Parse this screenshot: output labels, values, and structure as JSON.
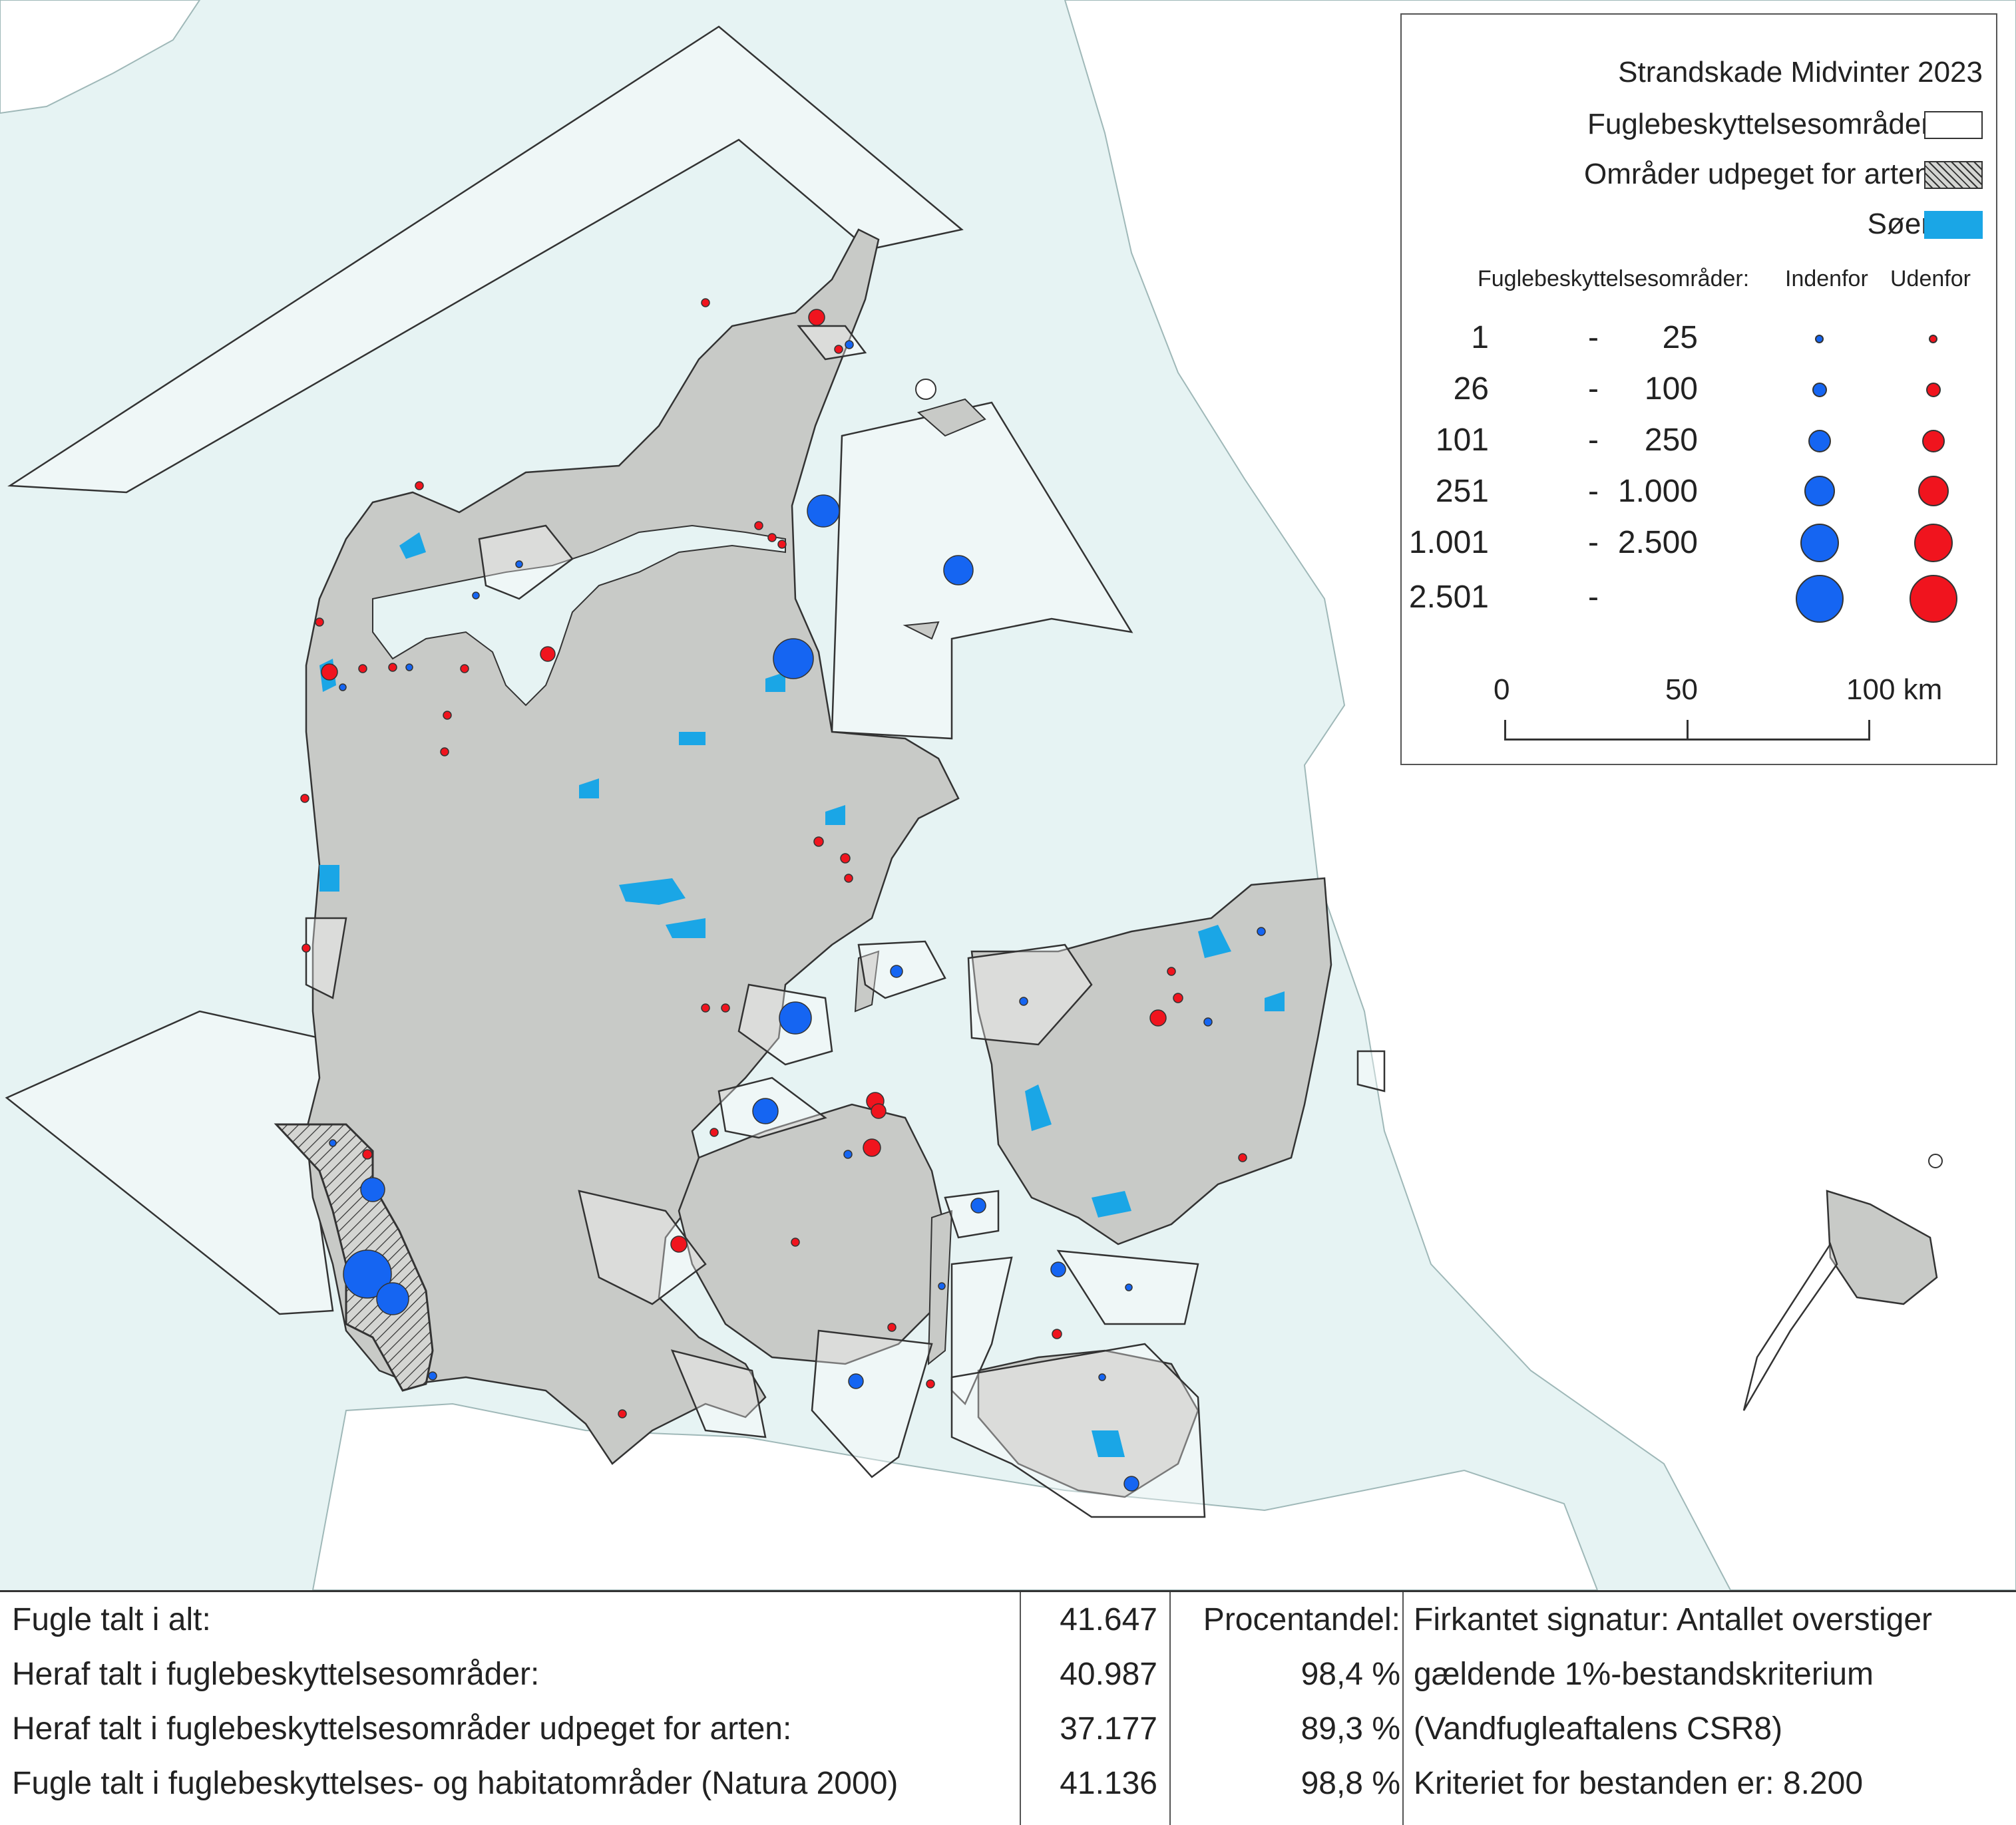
{
  "legend": {
    "title": "Strandskade Midvinter 2023",
    "items": [
      {
        "label": "Fuglebeskyttelsesområder",
        "swatch": "outline"
      },
      {
        "label": "Områder udpeget for arten",
        "swatch": "hatched"
      },
      {
        "label": "Søer",
        "swatch": "lake"
      }
    ],
    "size_header": "Fuglebeskyttelsesområder:",
    "col_inside": "Indenfor",
    "col_outside": "Udenfor",
    "classes": [
      {
        "from": "1",
        "dash": "-",
        "to": "25"
      },
      {
        "from": "26",
        "dash": "-",
        "to": "100"
      },
      {
        "from": "101",
        "dash": "-",
        "to": "250"
      },
      {
        "from": "251",
        "dash": "-",
        "to": "1.000"
      },
      {
        "from": "1.001",
        "dash": "-",
        "to": "2.500"
      },
      {
        "from": "2.501",
        "dash": "-",
        "to": ""
      }
    ],
    "scale": {
      "labels": [
        "0",
        "50",
        "100 km"
      ]
    }
  },
  "stats": {
    "rows": [
      {
        "label": "Fugle talt i alt:",
        "count": "41.647",
        "pct": "Procentandel:",
        "note": "Firkantet signatur: Antallet overstiger"
      },
      {
        "label": "Heraf talt i fuglebeskyttelsesområder:",
        "count": "40.987",
        "pct": "98,4 %",
        "note": "gældende 1%-bestandskriterium"
      },
      {
        "label": "Heraf talt i fuglebeskyttelsesområder udpeget for arten:",
        "count": "37.177",
        "pct": "89,3 %",
        "note": "(Vandfugleaftalens CSR8)"
      },
      {
        "label": "Fugle talt i fuglebeskyttelses- og habitatområder (Natura 2000)",
        "count": "41.136",
        "pct": "98,8 %",
        "note": "Kriteriet for bestanden er: 8.200"
      }
    ]
  },
  "colors": {
    "sea": "#e6f3f3",
    "land": "#c8cac7",
    "lake": "#1aa6e6",
    "inside": "#1565f2",
    "outside": "#f0141e",
    "outline": "#333333"
  },
  "icons": {
    "inside_marker": "blue-circle",
    "outside_marker": "red-circle"
  }
}
